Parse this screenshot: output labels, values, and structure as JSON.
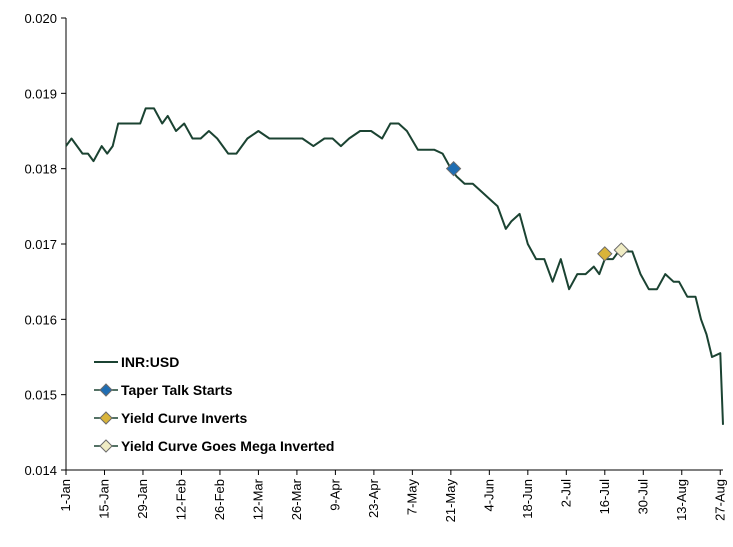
{
  "chart_data": {
    "type": "line",
    "title": "",
    "xlabel": "",
    "ylabel": "",
    "ylim": [
      0.014,
      0.02
    ],
    "yticks": [
      "0.014",
      "0.015",
      "0.016",
      "0.017",
      "0.018",
      "0.019",
      "0.020"
    ],
    "xticks": [
      "1-Jan",
      "15-Jan",
      "29-Jan",
      "12-Feb",
      "26-Feb",
      "12-Mar",
      "26-Mar",
      "9-Apr",
      "23-Apr",
      "7-May",
      "21-May",
      "4-Jun",
      "18-Jun",
      "2-Jul",
      "16-Jul",
      "30-Jul",
      "13-Aug",
      "27-Aug"
    ],
    "grid": false,
    "legend_position": "bottom-left",
    "colors": {
      "line": "#1b4332",
      "taper": "#1f6db2",
      "yield": "#d9b43a",
      "mega": "#f0ecc4"
    },
    "series": [
      {
        "name": "INR:USD",
        "x": [
          "1-Jan",
          "3-Jan",
          "7-Jan",
          "9-Jan",
          "11-Jan",
          "14-Jan",
          "16-Jan",
          "18-Jan",
          "20-Jan",
          "23-Jan",
          "26-Jan",
          "28-Jan",
          "30-Jan",
          "2-Feb",
          "5-Feb",
          "7-Feb",
          "10-Feb",
          "13-Feb",
          "16-Feb",
          "19-Feb",
          "22-Feb",
          "25-Feb",
          "1-Mar",
          "4-Mar",
          "8-Mar",
          "12-Mar",
          "16-Mar",
          "20-Mar",
          "24-Mar",
          "28-Mar",
          "1-Apr",
          "5-Apr",
          "8-Apr",
          "11-Apr",
          "14-Apr",
          "18-Apr",
          "22-Apr",
          "26-Apr",
          "29-Apr",
          "2-May",
          "5-May",
          "9-May",
          "12-May",
          "15-May",
          "18-May",
          "21-May",
          "23-May",
          "26-May",
          "29-May",
          "1-Jun",
          "4-Jun",
          "7-Jun",
          "10-Jun",
          "12-Jun",
          "15-Jun",
          "18-Jun",
          "21-Jun",
          "24-Jun",
          "27-Jun",
          "30-Jun",
          "3-Jul",
          "6-Jul",
          "9-Jul",
          "12-Jul",
          "14-Jul",
          "16-Jul",
          "19-Jul",
          "21-Jul",
          "23-Jul",
          "26-Jul",
          "29-Jul",
          "1-Aug",
          "4-Aug",
          "7-Aug",
          "10-Aug",
          "12-Aug",
          "15-Aug",
          "18-Aug",
          "20-Aug",
          "22-Aug",
          "24-Aug",
          "27-Aug",
          "28-Aug"
        ],
        "values": [
          0.0183,
          0.0184,
          0.0182,
          0.0182,
          0.0181,
          0.0183,
          0.0182,
          0.0183,
          0.0186,
          0.0186,
          0.0186,
          0.0186,
          0.0188,
          0.0188,
          0.0186,
          0.0187,
          0.0185,
          0.0186,
          0.0184,
          0.0184,
          0.0185,
          0.0184,
          0.0182,
          0.0182,
          0.0184,
          0.0185,
          0.0184,
          0.0184,
          0.0184,
          0.0184,
          0.0183,
          0.0184,
          0.0184,
          0.0183,
          0.0184,
          0.0185,
          0.0185,
          0.0184,
          0.0186,
          0.0186,
          0.0185,
          0.01825,
          0.01825,
          0.01825,
          0.0182,
          0.018,
          0.0179,
          0.0178,
          0.0178,
          0.0177,
          0.0176,
          0.0175,
          0.0172,
          0.0173,
          0.0174,
          0.017,
          0.0168,
          0.0168,
          0.0165,
          0.0168,
          0.0164,
          0.0166,
          0.0166,
          0.0167,
          0.0166,
          0.0168,
          0.0168,
          0.0169,
          0.0169,
          0.0169,
          0.0166,
          0.0164,
          0.0164,
          0.0166,
          0.0165,
          0.0165,
          0.0163,
          0.0163,
          0.016,
          0.0158,
          0.0155,
          0.01555,
          0.0146
        ]
      }
    ],
    "markers": [
      {
        "name": "Taper Talk Starts",
        "x": "22-May",
        "value": 0.018
      },
      {
        "name": "Yield Curve Inverts",
        "x": "16-Jul",
        "value": 0.01687
      },
      {
        "name": "Yield Curve Goes Mega Inverted",
        "x": "22-Jul",
        "value": 0.01692
      }
    ]
  }
}
